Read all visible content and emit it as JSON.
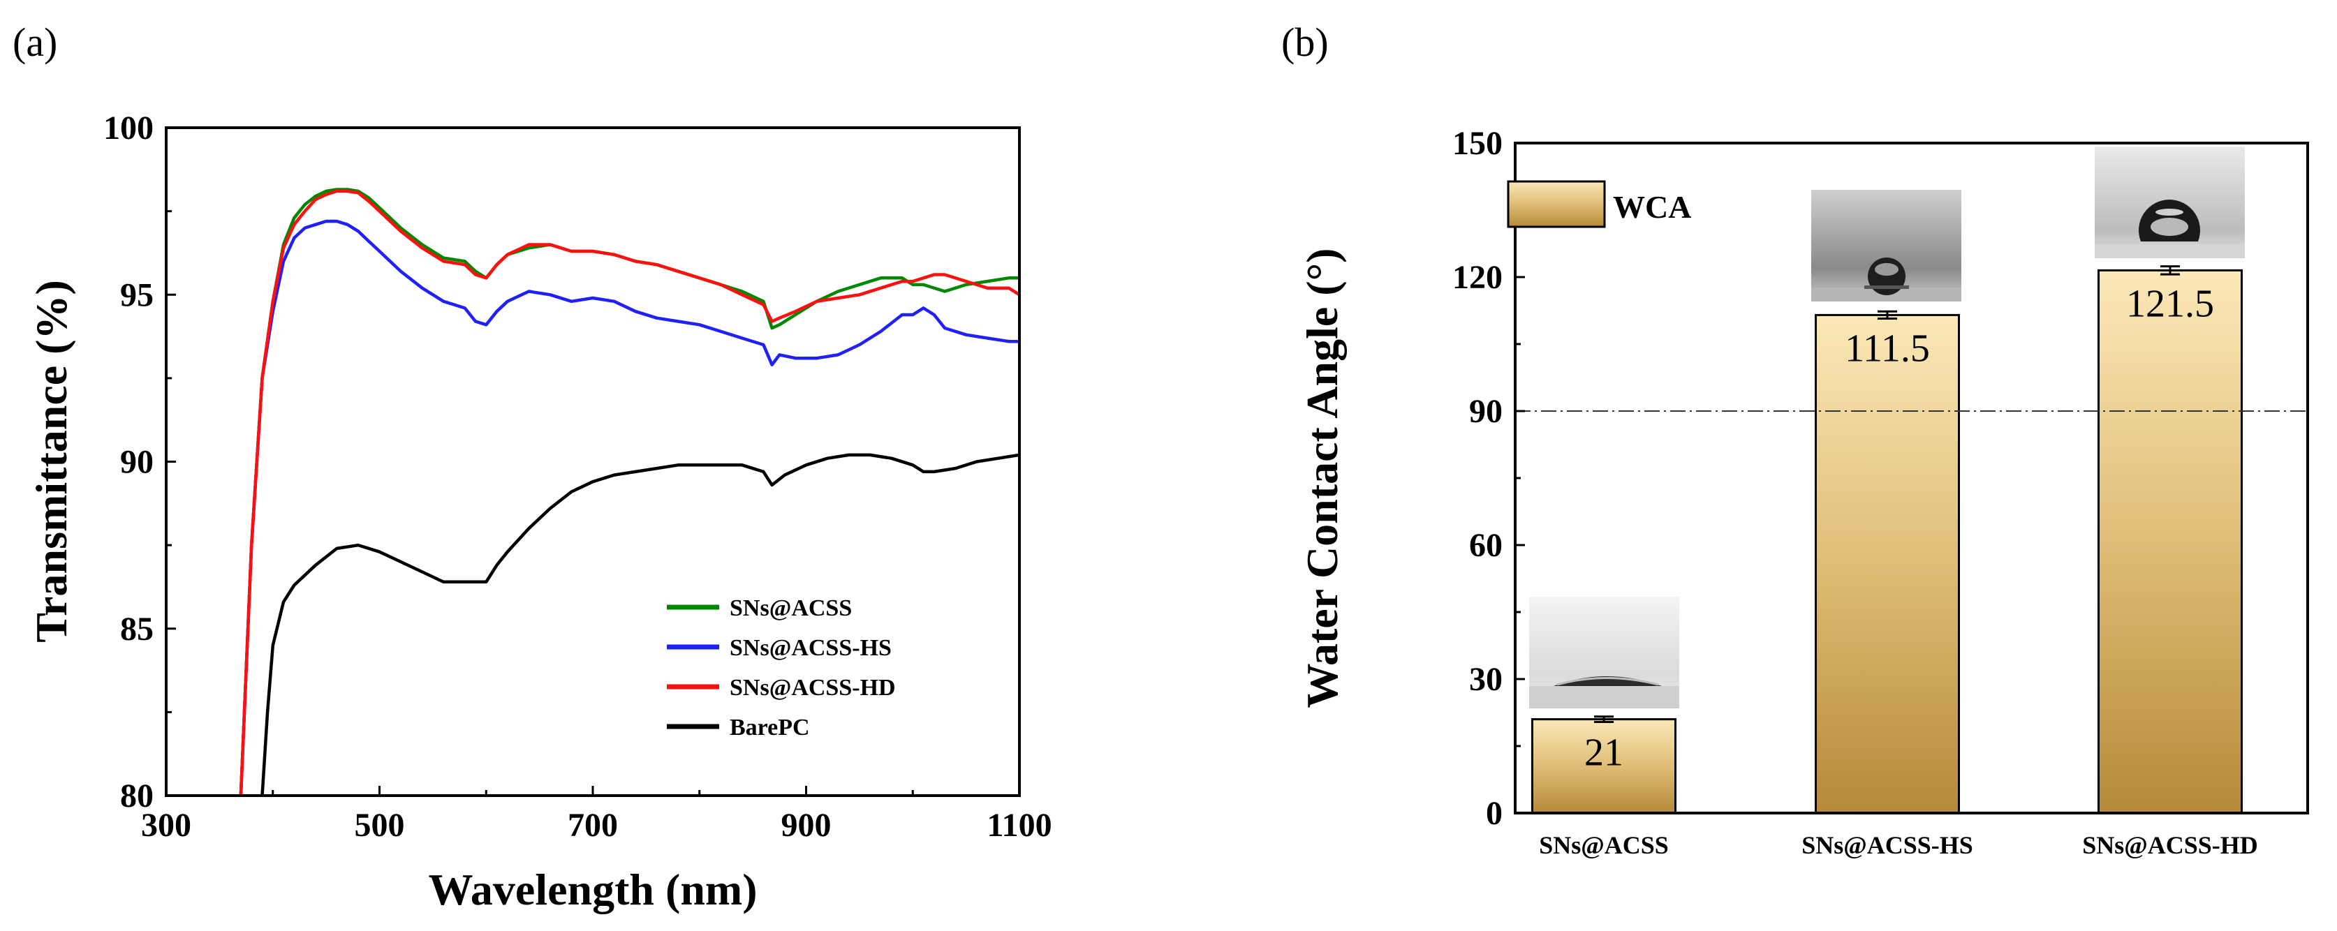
{
  "panels": {
    "a_label": "(a)",
    "b_label": "(b)"
  },
  "chart_data": [
    {
      "type": "line",
      "title": "",
      "xlabel": "Wavelength (nm)",
      "ylabel": "Transmittance (%)",
      "xlim": [
        300,
        1100
      ],
      "ylim": [
        80,
        100
      ],
      "xticks": [
        300,
        500,
        700,
        900,
        1100
      ],
      "yticks": [
        80,
        85,
        90,
        95,
        100
      ],
      "legend_position": "bottom-right",
      "series": [
        {
          "name": "SNs@ACSS",
          "color": "#008800",
          "x": [
            370,
            380,
            390,
            400,
            410,
            420,
            430,
            440,
            450,
            460,
            470,
            480,
            490,
            500,
            520,
            540,
            560,
            580,
            590,
            600,
            610,
            620,
            640,
            660,
            680,
            700,
            720,
            740,
            760,
            780,
            800,
            820,
            840,
            860,
            868,
            875,
            890,
            910,
            930,
            950,
            970,
            990,
            1000,
            1010,
            1030,
            1050,
            1070,
            1090,
            1100
          ],
          "y": [
            80.0,
            87.5,
            92.5,
            94.8,
            96.5,
            97.3,
            97.7,
            97.95,
            98.1,
            98.15,
            98.15,
            98.1,
            97.9,
            97.6,
            97.0,
            96.5,
            96.1,
            96.0,
            95.7,
            95.5,
            95.9,
            96.2,
            96.4,
            96.5,
            96.3,
            96.3,
            96.2,
            96.0,
            95.9,
            95.7,
            95.5,
            95.3,
            95.1,
            94.8,
            94.0,
            94.1,
            94.4,
            94.8,
            95.1,
            95.3,
            95.5,
            95.5,
            95.3,
            95.3,
            95.1,
            95.3,
            95.4,
            95.5,
            95.5
          ]
        },
        {
          "name": "SNs@ACSS-HS",
          "color": "#1f1fff",
          "x": [
            370,
            380,
            390,
            400,
            410,
            420,
            430,
            440,
            450,
            460,
            470,
            480,
            490,
            500,
            520,
            540,
            560,
            580,
            590,
            600,
            610,
            620,
            640,
            660,
            680,
            700,
            720,
            740,
            760,
            780,
            800,
            820,
            840,
            860,
            868,
            875,
            890,
            910,
            930,
            950,
            970,
            990,
            1000,
            1010,
            1020,
            1030,
            1050,
            1070,
            1090,
            1100
          ],
          "y": [
            80.0,
            87.5,
            92.5,
            94.5,
            96.0,
            96.7,
            97.0,
            97.1,
            97.2,
            97.2,
            97.1,
            96.9,
            96.6,
            96.3,
            95.7,
            95.2,
            94.8,
            94.6,
            94.2,
            94.1,
            94.5,
            94.8,
            95.1,
            95.0,
            94.8,
            94.9,
            94.8,
            94.5,
            94.3,
            94.2,
            94.1,
            93.9,
            93.7,
            93.5,
            92.9,
            93.2,
            93.1,
            93.1,
            93.2,
            93.5,
            93.9,
            94.4,
            94.4,
            94.6,
            94.4,
            94.0,
            93.8,
            93.7,
            93.6,
            93.6
          ]
        },
        {
          "name": "SNs@ACSS-HD",
          "color": "#ff1010",
          "x": [
            370,
            380,
            390,
            400,
            410,
            420,
            430,
            440,
            450,
            460,
            470,
            480,
            490,
            500,
            520,
            540,
            560,
            580,
            590,
            600,
            610,
            620,
            640,
            660,
            680,
            700,
            720,
            740,
            760,
            780,
            800,
            820,
            840,
            860,
            868,
            875,
            890,
            910,
            930,
            950,
            970,
            990,
            1000,
            1010,
            1020,
            1030,
            1050,
            1070,
            1090,
            1100
          ],
          "y": [
            80.0,
            87.5,
            92.5,
            94.8,
            96.4,
            97.1,
            97.5,
            97.85,
            98.0,
            98.1,
            98.1,
            98.05,
            97.8,
            97.5,
            96.9,
            96.4,
            96.0,
            95.9,
            95.6,
            95.5,
            95.9,
            96.2,
            96.5,
            96.5,
            96.3,
            96.3,
            96.2,
            96.0,
            95.9,
            95.7,
            95.5,
            95.3,
            95.0,
            94.7,
            94.2,
            94.3,
            94.5,
            94.8,
            94.9,
            95.0,
            95.2,
            95.4,
            95.4,
            95.5,
            95.6,
            95.6,
            95.4,
            95.2,
            95.2,
            95.0
          ]
        },
        {
          "name": "BarePC",
          "color": "#000000",
          "x": [
            390,
            395,
            400,
            410,
            420,
            440,
            460,
            480,
            500,
            520,
            540,
            560,
            580,
            600,
            610,
            620,
            640,
            660,
            680,
            700,
            720,
            740,
            760,
            780,
            800,
            820,
            840,
            860,
            868,
            880,
            900,
            920,
            940,
            960,
            980,
            1000,
            1010,
            1020,
            1040,
            1060,
            1080,
            1100
          ],
          "y": [
            80.0,
            82.5,
            84.5,
            85.8,
            86.3,
            86.9,
            87.4,
            87.5,
            87.3,
            87.0,
            86.7,
            86.4,
            86.4,
            86.4,
            86.9,
            87.3,
            88.0,
            88.6,
            89.1,
            89.4,
            89.6,
            89.7,
            89.8,
            89.9,
            89.9,
            89.9,
            89.9,
            89.7,
            89.3,
            89.6,
            89.9,
            90.1,
            90.2,
            90.2,
            90.1,
            89.9,
            89.7,
            89.7,
            89.8,
            90.0,
            90.1,
            90.2
          ]
        }
      ]
    },
    {
      "type": "bar",
      "title": "",
      "xlabel": "",
      "ylabel": "Water Contact Angle (°)",
      "ylim": [
        0,
        150
      ],
      "yticks": [
        0,
        30,
        60,
        90,
        120,
        150
      ],
      "reference_line": 90,
      "legend": "WCA",
      "legend_position": "top-left",
      "categories": [
        "SNs@ACSS",
        "SNs@ACSS-HS",
        "SNs@ACSS-HD"
      ],
      "values": [
        21,
        111.5,
        121.5
      ],
      "value_labels": [
        "21",
        "111.5",
        "121.5"
      ],
      "errors": [
        0.6,
        0.8,
        0.9
      ]
    }
  ]
}
